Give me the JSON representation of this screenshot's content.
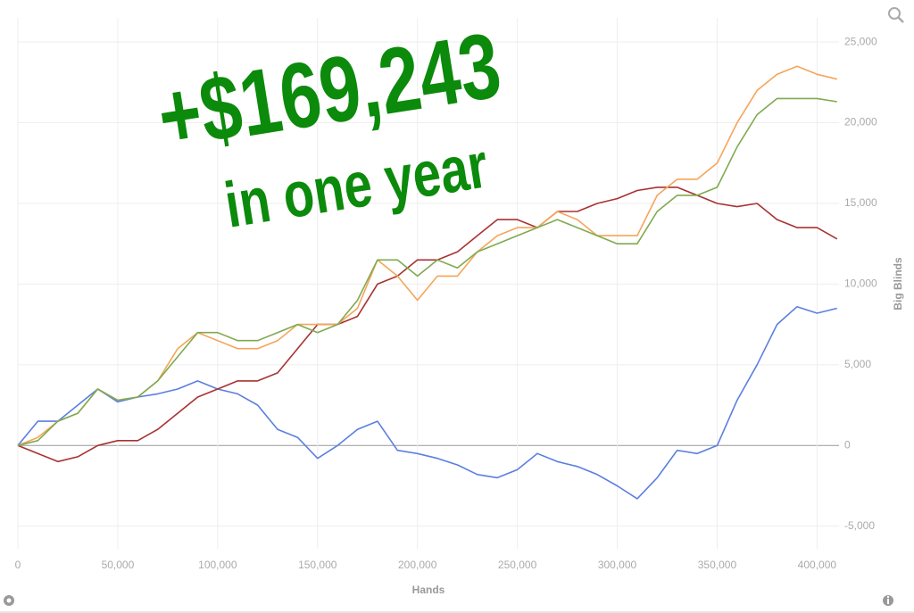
{
  "chart_data": {
    "type": "line",
    "annotations": [
      "+$169,243",
      "in one year"
    ],
    "x_label": "Hands",
    "y_label": "Big Blinds",
    "x": [
      0,
      10000,
      20000,
      30000,
      40000,
      50000,
      60000,
      70000,
      80000,
      90000,
      100000,
      110000,
      120000,
      130000,
      140000,
      150000,
      160000,
      170000,
      180000,
      190000,
      200000,
      210000,
      220000,
      230000,
      240000,
      250000,
      260000,
      270000,
      280000,
      290000,
      300000,
      310000,
      320000,
      330000,
      340000,
      350000,
      360000,
      370000,
      380000,
      390000,
      400000,
      410000
    ],
    "series": [
      {
        "color": "#5b7fe0",
        "values": [
          0,
          1500,
          1500,
          2500,
          3500,
          2700,
          3000,
          3200,
          3500,
          4000,
          3500,
          3200,
          2500,
          1000,
          500,
          -800,
          0,
          1000,
          1500,
          -300,
          -500,
          -800,
          -1200,
          -1800,
          -2000,
          -1500,
          -500,
          -1000,
          -1300,
          -1800,
          -2500,
          -3300,
          -2000,
          -300,
          -500,
          0,
          2800,
          5000,
          7500,
          8600,
          8200,
          8500
        ]
      },
      {
        "color": "#a83232",
        "values": [
          0,
          -500,
          -1000,
          -700,
          0,
          300,
          300,
          1000,
          2000,
          3000,
          3500,
          4000,
          4000,
          4500,
          6000,
          7500,
          7500,
          8000,
          10000,
          10500,
          11500,
          11500,
          12000,
          13000,
          14000,
          14000,
          13500,
          14500,
          14500,
          15000,
          15300,
          15800,
          16000,
          16000,
          15500,
          15000,
          14800,
          15000,
          14000,
          13500,
          13500,
          12800
        ]
      },
      {
        "color": "#f5a55a",
        "values": [
          0,
          500,
          1500,
          2000,
          3500,
          2800,
          3000,
          4000,
          6000,
          7000,
          6500,
          6000,
          6000,
          6500,
          7500,
          7500,
          7500,
          8500,
          11500,
          10500,
          9000,
          10500,
          10500,
          12000,
          13000,
          13500,
          13500,
          14500,
          14000,
          13000,
          13000,
          13000,
          15500,
          16500,
          16500,
          17500,
          20000,
          22000,
          23000,
          23500,
          23000,
          22700
        ]
      },
      {
        "color": "#7faa4f",
        "values": [
          0,
          300,
          1500,
          2000,
          3500,
          2800,
          3000,
          4000,
          5500,
          7000,
          7000,
          6500,
          6500,
          7000,
          7500,
          7000,
          7500,
          9000,
          11500,
          11500,
          10500,
          11500,
          11000,
          12000,
          12500,
          13000,
          13500,
          14000,
          13500,
          13000,
          12500,
          12500,
          14500,
          15500,
          15500,
          16000,
          18500,
          20500,
          21500,
          21500,
          21500,
          21300
        ]
      }
    ],
    "xlim": [
      0,
      411000
    ],
    "ylim": [
      -6400,
      26500
    ],
    "xticks": [
      0,
      {
        "value": 50000,
        "label": "50,000"
      },
      {
        "value": 100000,
        "label": "100,000"
      },
      {
        "value": 150000,
        "label": "150,000"
      },
      {
        "value": 200000,
        "label": "200,000"
      },
      {
        "value": 250000,
        "label": "250,000"
      },
      {
        "value": 300000,
        "label": "300,000"
      },
      {
        "value": 350000,
        "label": "350,000"
      },
      {
        "value": 400000,
        "label": "400,000"
      }
    ],
    "yticks": [
      {
        "value": -5000,
        "label": "-5,000"
      },
      0,
      {
        "value": 5000,
        "label": "5,000"
      },
      {
        "value": 10000,
        "label": "10,000"
      },
      {
        "value": 15000,
        "label": "15,000"
      },
      {
        "value": 20000,
        "label": "20,000"
      },
      {
        "value": 25000,
        "label": "25,000"
      }
    ],
    "grid": true,
    "annotation_color": "#0b8a0b"
  }
}
